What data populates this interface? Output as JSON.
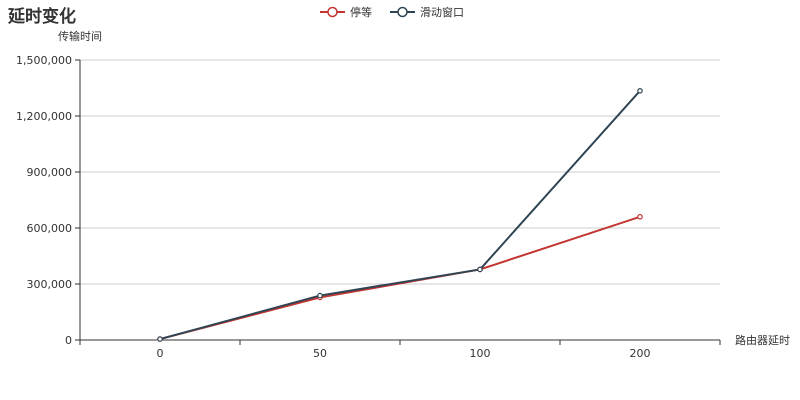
{
  "chart_data": {
    "type": "line",
    "title": "延时变化",
    "xlabel": "路由器延时",
    "ylabel": "传输时间",
    "categories": [
      "0",
      "50",
      "100",
      "200"
    ],
    "yticks": [
      "0",
      "300,000",
      "600,000",
      "900,000",
      "1,200,000",
      "1,500,000"
    ],
    "ylim": [
      0,
      1500000
    ],
    "grid": true,
    "legend_position": "top-center",
    "series": [
      {
        "name": "停等",
        "color": "#c23531",
        "values": [
          5000,
          228000,
          378000,
          660000
        ]
      },
      {
        "name": "滑动窗口",
        "color": "#2f4554",
        "values": [
          5000,
          238000,
          378000,
          1335000
        ]
      }
    ]
  }
}
